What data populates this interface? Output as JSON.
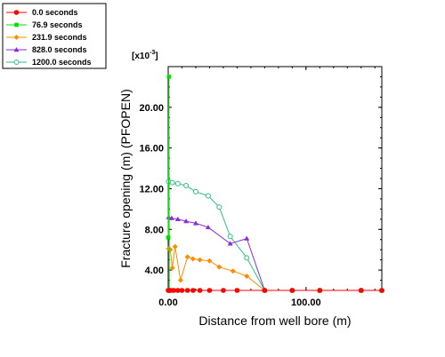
{
  "chart_data": {
    "type": "line",
    "xlabel": "Distance from well bore (m)",
    "ylabel": "Fracture opening (m) (PFOPEN)",
    "y_multiplier_label": "[x10",
    "y_multiplier_exp": "-3",
    "y_multiplier_close": "]",
    "xlim": [
      0,
      155
    ],
    "ylim": [
      2,
      24
    ],
    "x_ticks": [
      0,
      100
    ],
    "x_tick_labels": [
      "0.00",
      "100.00"
    ],
    "y_ticks": [
      4,
      8,
      12,
      16,
      20
    ],
    "y_tick_labels": [
      "4.00",
      "8.00",
      "12.00",
      "16.00",
      "20.00"
    ],
    "legend_position": "top-left",
    "grid": false,
    "series": [
      {
        "name": "0.0 seconds",
        "color": "#ff0000",
        "marker": "circle",
        "x": [
          0,
          0.5,
          1,
          2,
          4,
          7,
          10,
          14,
          18,
          23,
          30,
          40,
          50,
          70,
          90,
          110,
          140,
          155
        ],
        "y": [
          2,
          2,
          2,
          2,
          2,
          2,
          2,
          2,
          2,
          2,
          2,
          2,
          2,
          2,
          2,
          2,
          2,
          2
        ]
      },
      {
        "name": "76.9 seconds",
        "color": "#00e000",
        "marker": "square",
        "x": [
          0,
          0.5,
          0.8,
          1.2,
          2,
          4,
          7,
          10,
          14,
          18,
          23,
          30,
          40,
          50,
          70,
          90,
          110,
          140,
          155
        ],
        "y": [
          7.2,
          23,
          2,
          2,
          2,
          2,
          2,
          2,
          2,
          2,
          2,
          2,
          2,
          2,
          2,
          2,
          2,
          2,
          2
        ]
      },
      {
        "name": "231.9 seconds",
        "color": "#ff8c00",
        "marker": "diamond",
        "x": [
          0.3,
          1.5,
          3,
          5,
          9,
          14,
          18,
          23,
          30,
          37,
          47,
          57,
          70,
          90,
          110,
          140,
          155
        ],
        "y": [
          6.1,
          6.0,
          4.2,
          6.3,
          3.0,
          5.3,
          5.1,
          5.0,
          4.9,
          4.3,
          3.9,
          3.4,
          2.0,
          2.0,
          2.0,
          2.0,
          2.0
        ]
      },
      {
        "name": "828.0 seconds",
        "color": "#8a2be2",
        "marker": "triangle",
        "x": [
          0.3,
          2.5,
          7,
          13,
          20,
          29,
          45,
          57,
          70,
          90,
          110,
          140,
          155
        ],
        "y": [
          9.2,
          9.1,
          9.0,
          8.8,
          8.6,
          8.2,
          6.6,
          7.1,
          2.0,
          2.0,
          2.0,
          2.0,
          2.0
        ]
      },
      {
        "name": "1200.0 seconds",
        "color": "#2fbf7f",
        "marker": "open-circle",
        "x": [
          0.3,
          3,
          7,
          13,
          20,
          29,
          37,
          45,
          57,
          70,
          90,
          110,
          140,
          155
        ],
        "y": [
          12.7,
          12.6,
          12.5,
          12.3,
          11.7,
          11.3,
          10.2,
          7.3,
          5.2,
          2.0,
          2.0,
          2.0,
          2.0,
          2.0
        ]
      }
    ]
  }
}
